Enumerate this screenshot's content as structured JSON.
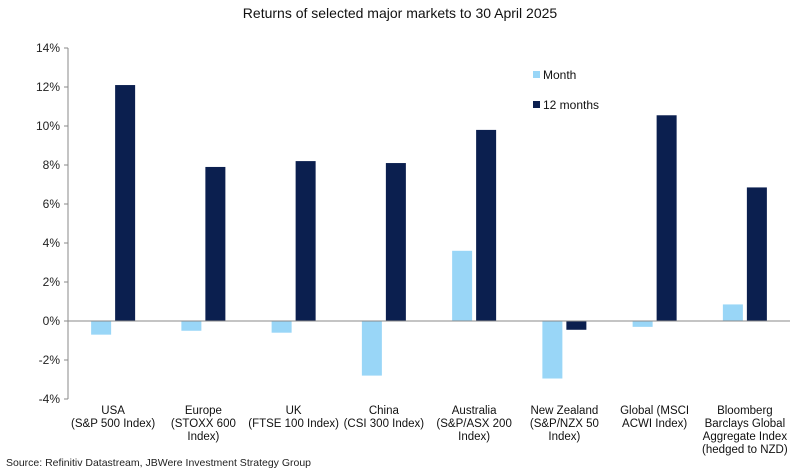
{
  "chart_data": {
    "type": "bar",
    "title": "Returns of selected major markets to 30 April 2025",
    "categories": [
      [
        "USA",
        "(S&P 500 Index)"
      ],
      [
        "Europe",
        "(STOXX 600",
        "Index)"
      ],
      [
        "UK",
        "(FTSE 100 Index)"
      ],
      [
        "China",
        "(CSI 300 Index)"
      ],
      [
        "Australia",
        "(S&P/ASX 200",
        "Index)"
      ],
      [
        "New Zealand",
        "(S&P/NZX 50",
        "Index)"
      ],
      [
        "Global (MSCI",
        "ACWI Index)"
      ],
      [
        "Bloomberg",
        "Barclays Global",
        "Aggregate Index",
        "(hedged to NZD)"
      ]
    ],
    "series": [
      {
        "name": "Month",
        "color": "#99d6f7",
        "values": [
          -0.7,
          -0.5,
          -0.6,
          -2.8,
          3.6,
          -2.95,
          -0.3,
          0.85
        ]
      },
      {
        "name": "12 months",
        "color": "#0b1f4f",
        "values": [
          12.1,
          7.9,
          8.2,
          8.1,
          9.8,
          -0.45,
          10.55,
          6.85
        ]
      }
    ],
    "ylim": [
      -4,
      14
    ],
    "yticks": [
      "-4%",
      "-2%",
      "0%",
      "2%",
      "4%",
      "6%",
      "8%",
      "10%",
      "12%",
      "14%"
    ],
    "ytick_values": [
      -4,
      -2,
      0,
      2,
      4,
      6,
      8,
      10,
      12,
      14
    ],
    "grid": false,
    "legend": "top-right",
    "source": "Source: Refinitiv Datastream, JBWere Investment Strategy Group"
  }
}
